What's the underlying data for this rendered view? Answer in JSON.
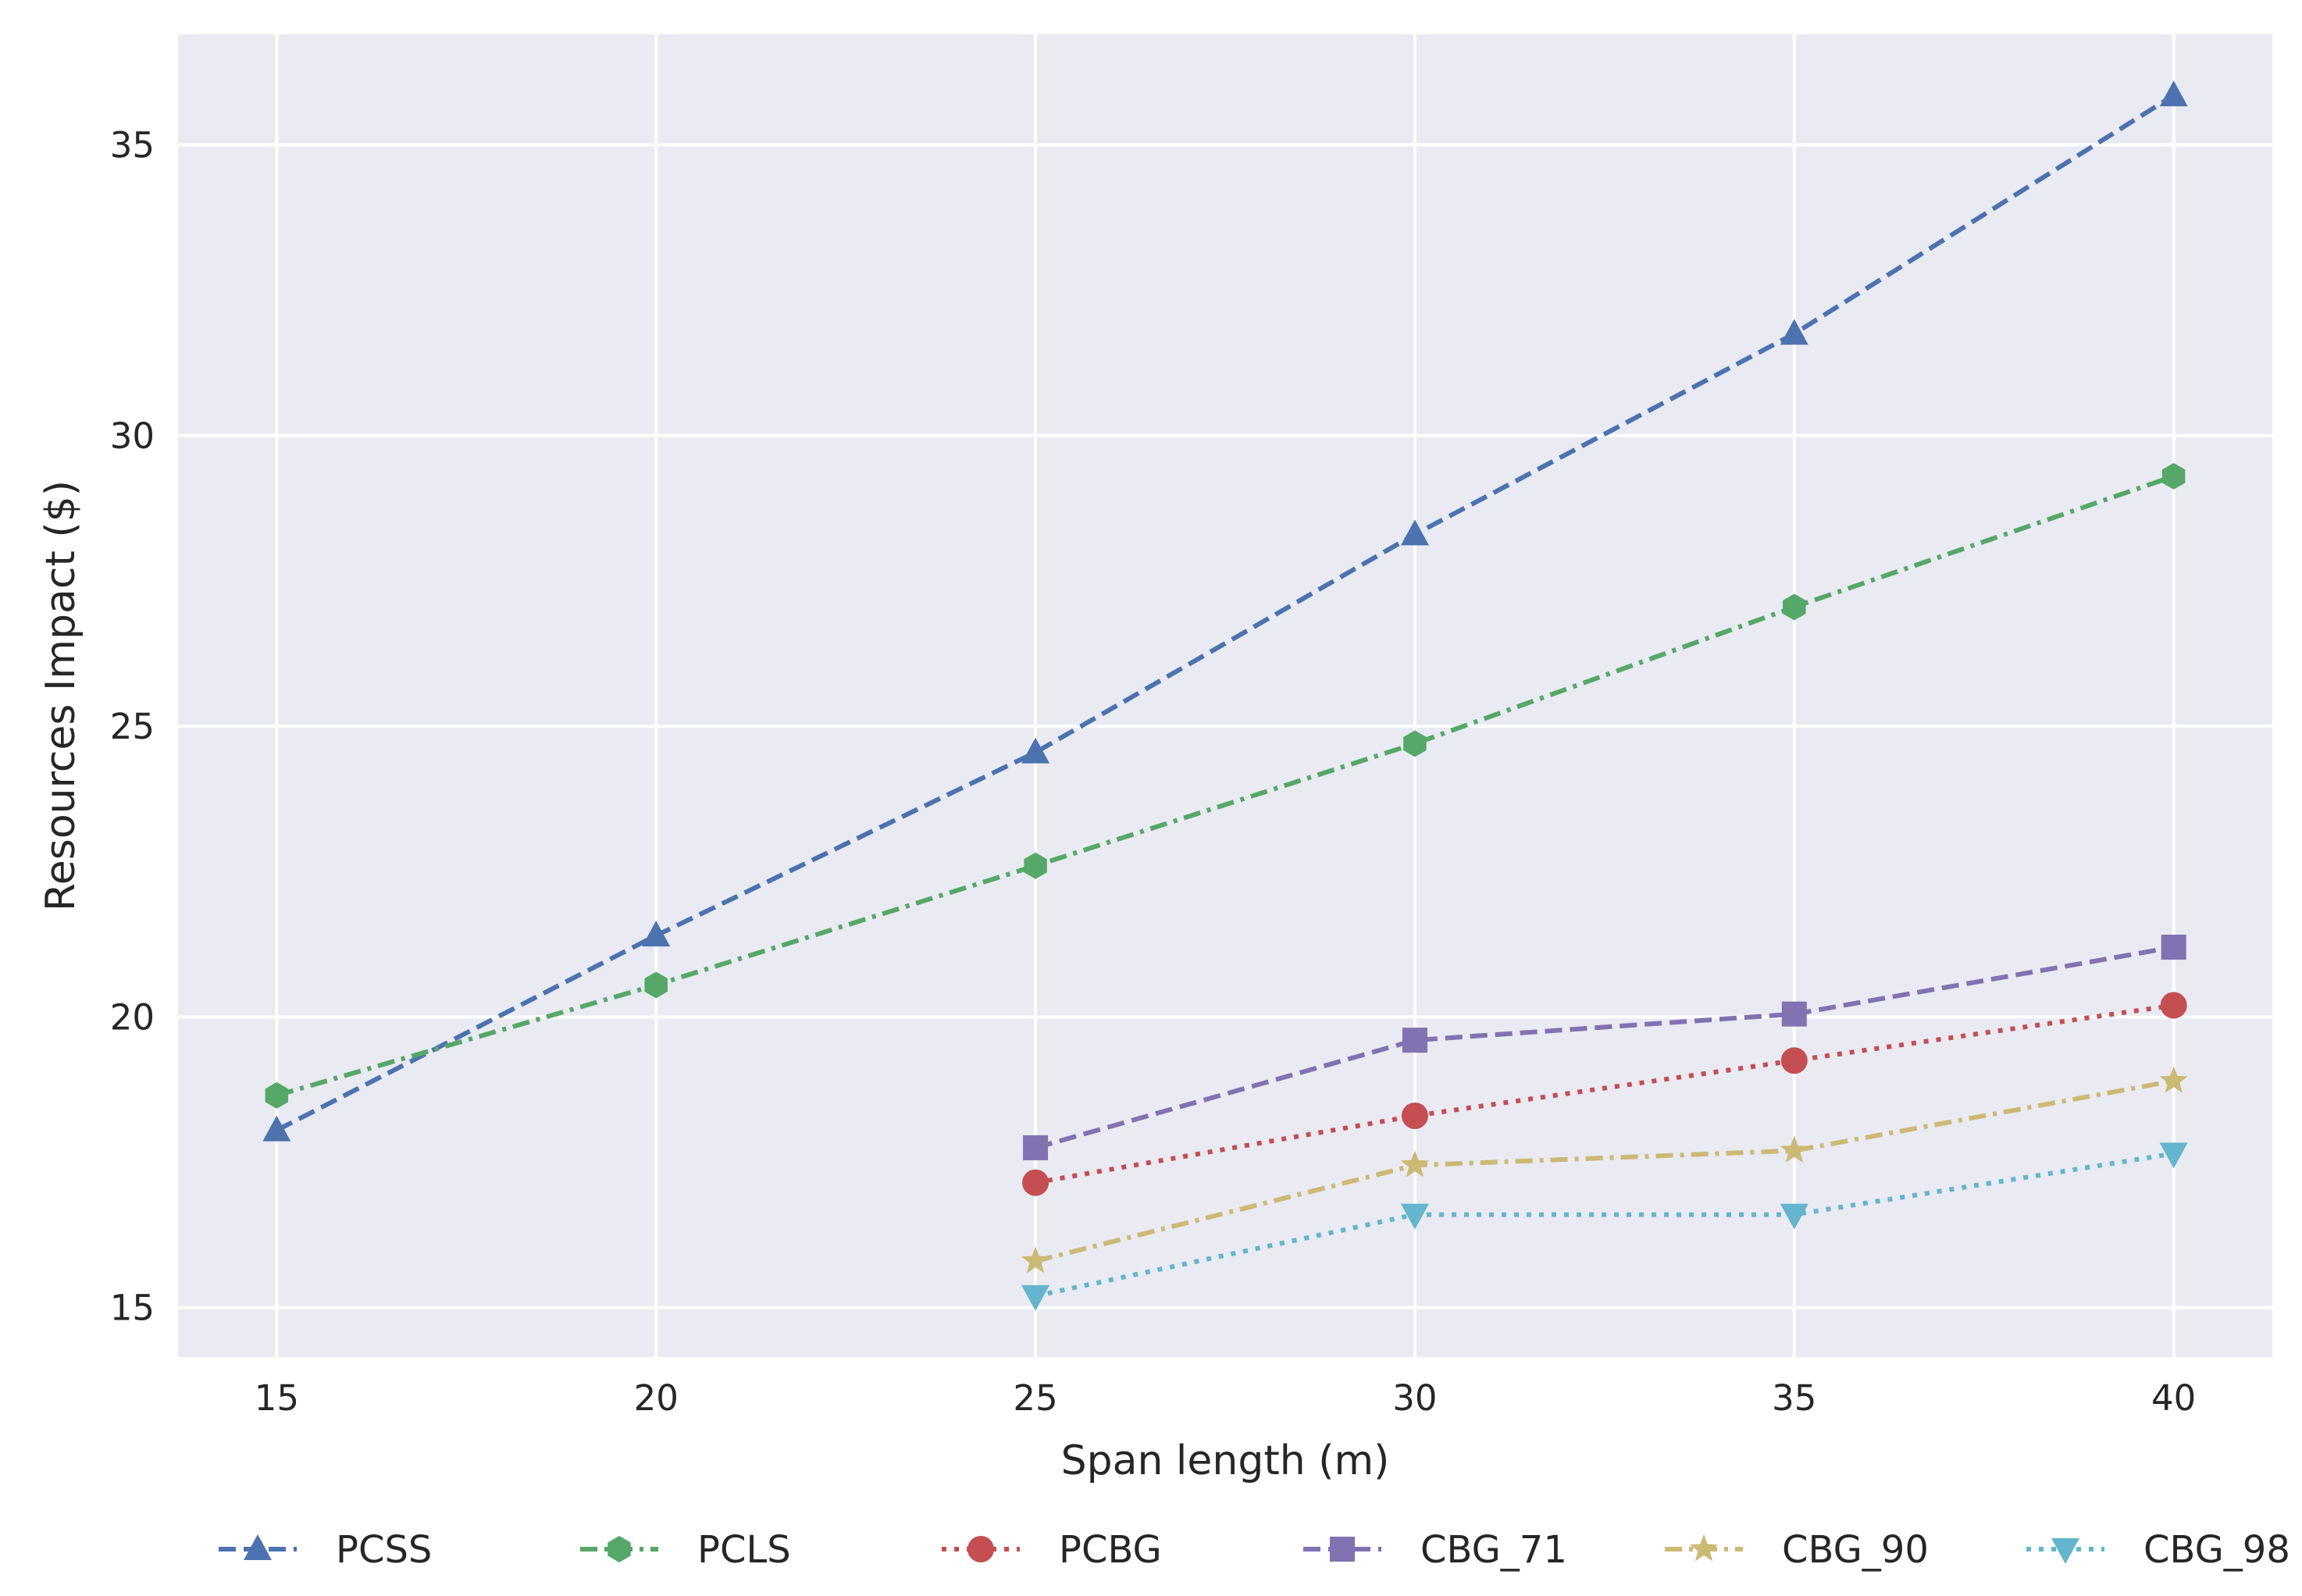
{
  "chart_data": {
    "type": "line",
    "title": "",
    "xlabel": "Span length (m)",
    "ylabel": "Resources Impact ($)",
    "xlim": [
      13.7,
      41.3
    ],
    "ylim": [
      14.15,
      36.9
    ],
    "xticks": [
      15,
      20,
      25,
      30,
      35,
      40
    ],
    "yticks": [
      15,
      20,
      25,
      30,
      35
    ],
    "grid": true,
    "legend_position": "bottom-center",
    "series": [
      {
        "name": "PCSS",
        "color": "#4C72B0",
        "dash": "dashed",
        "marker": "triangle-up",
        "x": [
          15,
          20,
          25,
          30,
          35,
          40
        ],
        "y": [
          18.05,
          21.4,
          24.55,
          28.3,
          31.75,
          35.85
        ]
      },
      {
        "name": "PCLS",
        "color": "#55A868",
        "dash": "dashdot",
        "marker": "hexagon",
        "x": [
          15,
          20,
          25,
          30,
          35,
          40
        ],
        "y": [
          18.65,
          20.55,
          22.6,
          24.7,
          27.05,
          29.3
        ]
      },
      {
        "name": "PCBG",
        "color": "#C44E52",
        "dash": "dotted",
        "marker": "circle",
        "x": [
          25,
          30,
          35,
          40
        ],
        "y": [
          17.15,
          18.3,
          19.25,
          20.2
        ]
      },
      {
        "name": "CBG_71",
        "color": "#8172B2",
        "dash": "dashed",
        "marker": "square",
        "x": [
          25,
          30,
          35,
          40
        ],
        "y": [
          17.75,
          19.6,
          20.05,
          21.2
        ]
      },
      {
        "name": "CBG_90",
        "color": "#CCB974",
        "dash": "dashdot",
        "marker": "star",
        "x": [
          25,
          30,
          35,
          40
        ],
        "y": [
          15.8,
          17.45,
          17.7,
          18.9
        ]
      },
      {
        "name": "CBG_98",
        "color": "#64B5CD",
        "dash": "dotted",
        "marker": "triangle-down",
        "x": [
          25,
          30,
          35,
          40
        ],
        "y": [
          15.2,
          16.6,
          16.6,
          17.65
        ]
      }
    ]
  }
}
